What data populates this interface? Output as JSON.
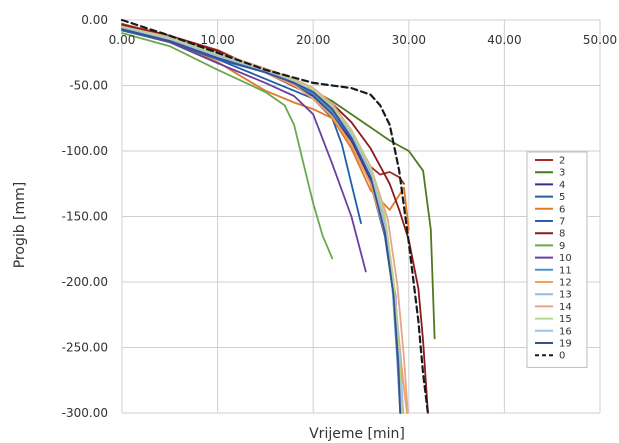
{
  "chart_data": {
    "type": "line",
    "xlabel": "Vrijeme [min]",
    "ylabel": "Progib [mm]",
    "xlim": [
      0,
      50
    ],
    "ylim": [
      -300,
      0
    ],
    "x_ticks": [
      "0.00",
      "10.00",
      "20.00",
      "30.00",
      "40.00",
      "50.00"
    ],
    "y_ticks": [
      "0.00",
      "-50.00",
      "-100.00",
      "-150.00",
      "-200.00",
      "-250.00",
      "-300.00"
    ],
    "x_tick_values": [
      0,
      10,
      20,
      30,
      40,
      50
    ],
    "y_tick_values": [
      0,
      -50,
      -100,
      -150,
      -200,
      -250,
      -300
    ],
    "grid": true,
    "legend_position": "right",
    "series": [
      {
        "name": "2",
        "color": "#a52a2a",
        "dash": false,
        "x": [
          0,
          5,
          10,
          15,
          20,
          24,
          26,
          27,
          28,
          29,
          29.5
        ],
        "y": [
          -3,
          -12,
          -23,
          -40,
          -58,
          -85,
          -112,
          -118,
          -116,
          -120,
          -125
        ]
      },
      {
        "name": "3",
        "color": "#4e7a1e",
        "dash": false,
        "x": [
          0,
          5,
          10,
          15,
          20,
          22,
          24,
          26,
          28,
          30,
          31.5,
          32.3,
          32.7
        ],
        "y": [
          -5,
          -13,
          -26,
          -40,
          -54,
          -62,
          -72,
          -82,
          -92,
          -100,
          -115,
          -160,
          -243
        ]
      },
      {
        "name": "4",
        "color": "#3a2d8c",
        "dash": false,
        "x": [
          0,
          5,
          10,
          15,
          18,
          20,
          22,
          24,
          26,
          27.5,
          28.6,
          29,
          29.2
        ],
        "y": [
          -5,
          -13,
          -26,
          -40,
          -50,
          -58,
          -72,
          -92,
          -122,
          -160,
          -210,
          -260,
          -300
        ]
      },
      {
        "name": "5",
        "color": "#1f5fa8",
        "dash": false,
        "x": [
          0,
          5,
          10,
          15,
          20,
          22,
          23,
          24,
          25
        ],
        "y": [
          -6,
          -15,
          -30,
          -45,
          -60,
          -75,
          -95,
          -125,
          -155
        ]
      },
      {
        "name": "6",
        "color": "#e07b28",
        "dash": false,
        "x": [
          0,
          5,
          10,
          12,
          15,
          18,
          20,
          22,
          24,
          26,
          28,
          29.5,
          30
        ],
        "y": [
          -7,
          -16,
          -32,
          -41,
          -54,
          -63,
          -68,
          -75,
          -98,
          -130,
          -145,
          -128,
          -160
        ]
      },
      {
        "name": "7",
        "color": "#2e5faa",
        "dash": false,
        "x": [
          0,
          5,
          10,
          15,
          18,
          20,
          22,
          24,
          26,
          27.5,
          28.6,
          29.1,
          29.4
        ],
        "y": [
          -8,
          -17,
          -30,
          -40,
          -50,
          -57,
          -72,
          -95,
          -125,
          -165,
          -220,
          -268,
          -300
        ]
      },
      {
        "name": "8",
        "color": "#8b1a1a",
        "dash": false,
        "x": [
          0,
          5,
          10,
          15,
          20,
          22,
          24,
          26,
          28,
          29,
          30,
          31,
          31.5,
          31.8,
          32
        ],
        "y": [
          -4,
          -12,
          -24,
          -39,
          -54,
          -64,
          -78,
          -98,
          -125,
          -145,
          -168,
          -205,
          -245,
          -278,
          -300
        ]
      },
      {
        "name": "9",
        "color": "#6aa84f",
        "dash": false,
        "x": [
          0,
          5,
          10,
          15,
          17,
          18,
          19,
          20,
          21,
          22
        ],
        "y": [
          -10,
          -20,
          -38,
          -55,
          -65,
          -80,
          -110,
          -140,
          -165,
          -182
        ]
      },
      {
        "name": "10",
        "color": "#6a3fa0",
        "dash": false,
        "x": [
          0,
          5,
          10,
          15,
          18,
          20,
          22,
          24,
          25.5
        ],
        "y": [
          -7,
          -17,
          -33,
          -48,
          -58,
          -72,
          -110,
          -150,
          -192
        ]
      },
      {
        "name": "11",
        "color": "#4f8fc6",
        "dash": false,
        "x": [
          0,
          5,
          10,
          15,
          18,
          20,
          22,
          24,
          26,
          27.5,
          28.3,
          28.8,
          29.1
        ],
        "y": [
          -7,
          -16,
          -29,
          -40,
          -48,
          -56,
          -70,
          -90,
          -120,
          -160,
          -205,
          -260,
          -300
        ]
      },
      {
        "name": "12",
        "color": "#f0a15e",
        "dash": false,
        "x": [
          0,
          5,
          10,
          15,
          18,
          20,
          22,
          24,
          26,
          27.6,
          28.6,
          29.3,
          29.8
        ],
        "y": [
          -6,
          -14,
          -28,
          -40,
          -50,
          -60,
          -74,
          -95,
          -125,
          -165,
          -215,
          -268,
          -300
        ]
      },
      {
        "name": "13",
        "color": "#9ab8e0",
        "dash": false,
        "x": [
          0,
          5,
          10,
          15,
          18,
          20,
          22,
          24,
          26,
          27.6,
          28.5,
          29.1,
          29.4
        ],
        "y": [
          -6,
          -15,
          -27,
          -38,
          -46,
          -54,
          -66,
          -86,
          -116,
          -156,
          -205,
          -258,
          -300
        ]
      },
      {
        "name": "14",
        "color": "#e8a58a",
        "dash": false,
        "x": [
          0,
          5,
          10,
          15,
          18,
          20,
          22,
          24,
          26,
          27.8,
          28.8,
          29.5,
          29.9
        ],
        "y": [
          -5,
          -13,
          -25,
          -37,
          -45,
          -52,
          -64,
          -84,
          -112,
          -152,
          -202,
          -258,
          -300
        ]
      },
      {
        "name": "15",
        "color": "#b5d68a",
        "dash": false,
        "x": [
          0,
          5,
          10,
          15,
          18,
          20,
          22,
          24,
          26,
          27.5,
          28.4,
          29,
          29.3
        ],
        "y": [
          -5,
          -14,
          -26,
          -38,
          -46,
          -53,
          -66,
          -85,
          -113,
          -150,
          -198,
          -255,
          -300
        ]
      },
      {
        "name": "16",
        "color": "#9dc3e6",
        "dash": false,
        "x": [
          0,
          5,
          10,
          15,
          18,
          20,
          22,
          24,
          26,
          27.5,
          28.3,
          28.9,
          29.2
        ],
        "y": [
          -6,
          -15,
          -28,
          -39,
          -47,
          -55,
          -68,
          -88,
          -118,
          -158,
          -205,
          -258,
          -300
        ]
      },
      {
        "name": "19",
        "color": "#3b4f8f",
        "dash": false,
        "x": [
          0,
          5,
          10,
          15,
          18,
          20,
          22,
          24,
          26,
          27.5,
          28.4,
          28.9,
          29.1
        ],
        "y": [
          -7,
          -16,
          -29,
          -40,
          -48,
          -55,
          -68,
          -90,
          -120,
          -162,
          -210,
          -262,
          -300
        ]
      },
      {
        "name": "0",
        "color": "#1a1a1a",
        "dash": true,
        "x": [
          0,
          5,
          10,
          15,
          20,
          24,
          26,
          27,
          28,
          29,
          30,
          31,
          31.5,
          32
        ],
        "y": [
          0,
          -12,
          -25,
          -38,
          -48,
          -52,
          -57,
          -65,
          -80,
          -115,
          -170,
          -230,
          -270,
          -300
        ]
      }
    ]
  }
}
